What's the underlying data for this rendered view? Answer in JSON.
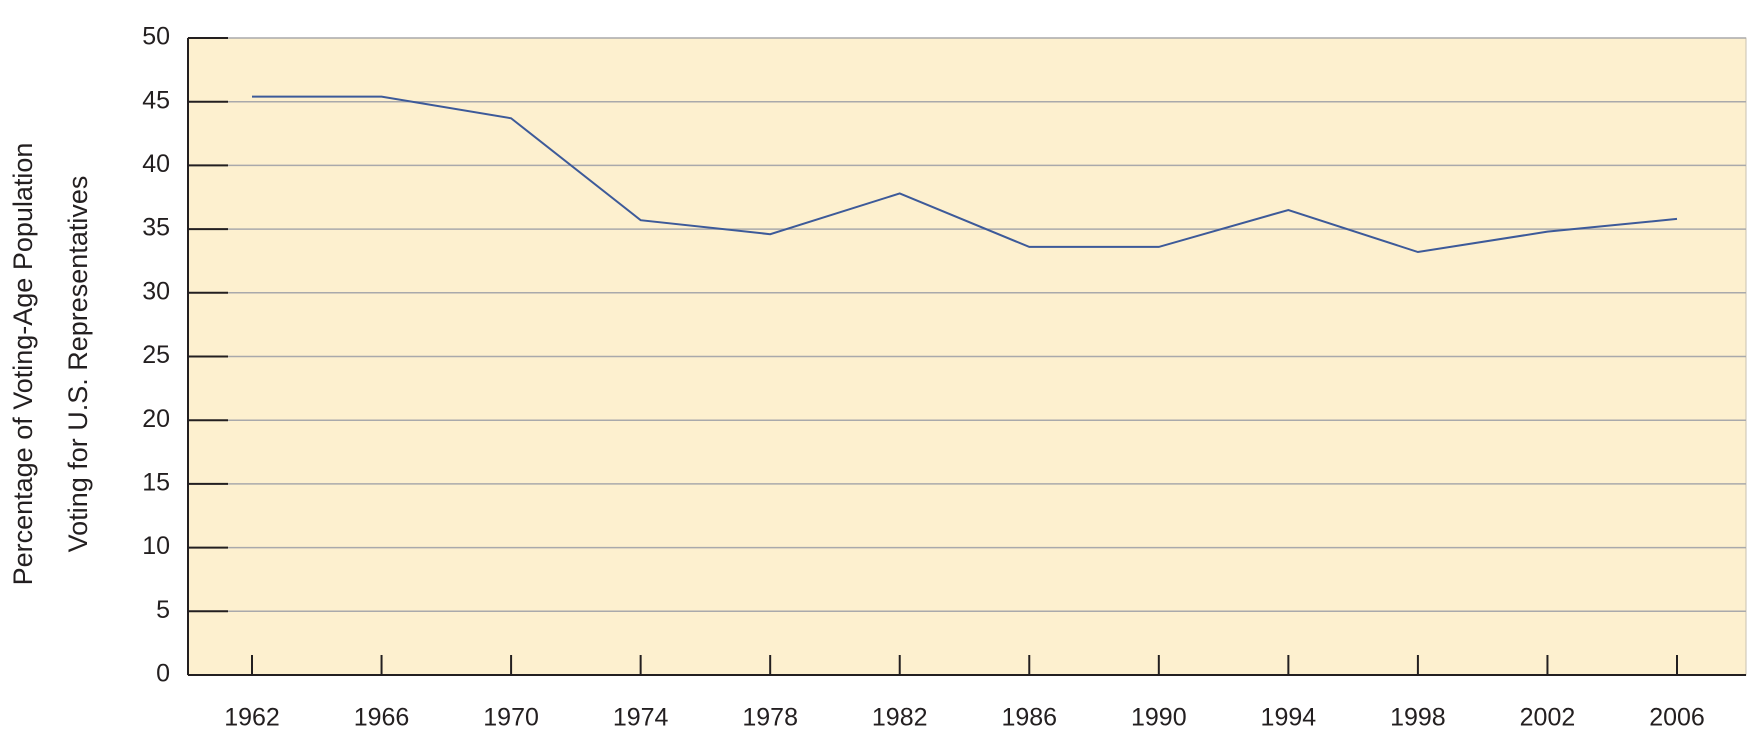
{
  "chart_data": {
    "type": "line",
    "ylabel": [
      "Percentage of Voting-Age Population",
      "Voting for U.S. Representatives"
    ],
    "categories": [
      "1962",
      "1966",
      "1970",
      "1974",
      "1978",
      "1982",
      "1986",
      "1990",
      "1994",
      "1998",
      "2002",
      "2006"
    ],
    "series": [
      {
        "color": "#3d5a99",
        "values": [
          45.4,
          45.4,
          43.7,
          35.7,
          34.6,
          37.8,
          33.6,
          33.6,
          36.5,
          33.2,
          34.8,
          35.8
        ]
      }
    ],
    "ylim": [
      0,
      50
    ],
    "yticks": [
      0,
      5,
      10,
      15,
      20,
      25,
      30,
      35,
      40,
      45,
      50
    ],
    "grid": true,
    "background": "#fdf0cf"
  }
}
